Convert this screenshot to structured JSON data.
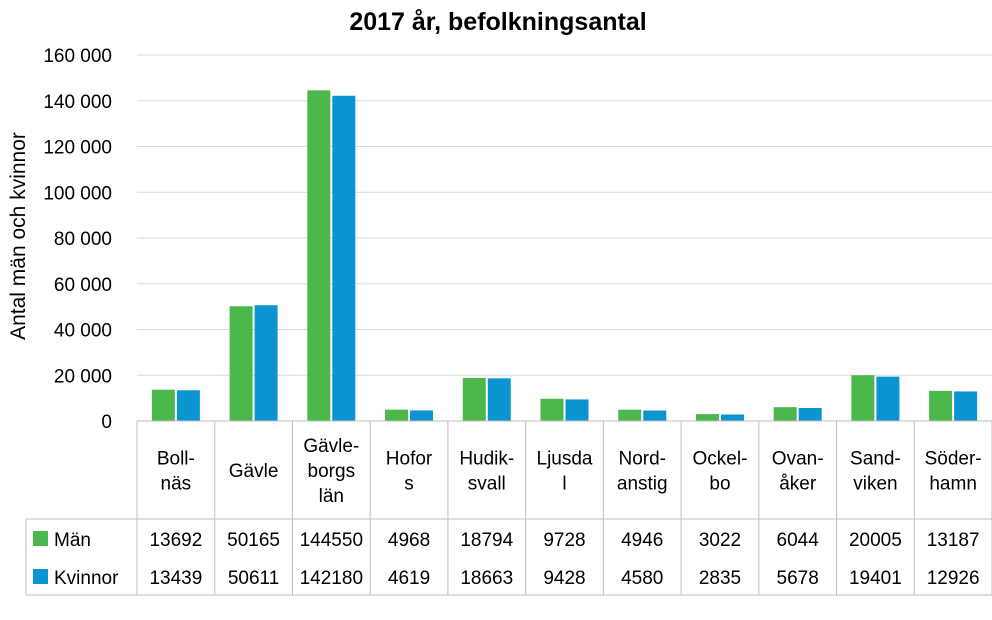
{
  "chart_data": {
    "type": "bar",
    "title": "2017 år, befolkningsantal",
    "ylabel": "Antal män och kvinnor",
    "ylim": [
      0,
      160000
    ],
    "yticks": [
      0,
      20000,
      40000,
      60000,
      80000,
      100000,
      120000,
      140000,
      160000
    ],
    "ytick_labels": [
      "0",
      "20 000",
      "40 000",
      "60 000",
      "80 000",
      "100 000",
      "120 000",
      "140 000",
      "160 000"
    ],
    "grid": true,
    "legend_placement": "data-table",
    "categories": [
      [
        "Boll-",
        "näs"
      ],
      [
        "Gävle"
      ],
      [
        "Gävle-",
        "borgs",
        "län"
      ],
      [
        "Hofor",
        "s"
      ],
      [
        "Hudik-",
        "svall"
      ],
      [
        "Ljusda",
        "l"
      ],
      [
        "Nord-",
        "anstig"
      ],
      [
        "Ockel-",
        "bo"
      ],
      [
        "Ovan-",
        "åker"
      ],
      [
        "Sand-",
        "viken"
      ],
      [
        "Söder-",
        "hamn"
      ]
    ],
    "series": [
      {
        "name": "Män",
        "color": "#4cb84c",
        "values": [
          13692,
          50165,
          144550,
          4968,
          18794,
          9728,
          4946,
          3022,
          6044,
          20005,
          13187
        ]
      },
      {
        "name": "Kvinnor",
        "color": "#0b94d0",
        "values": [
          13439,
          50611,
          142180,
          4619,
          18663,
          9428,
          4580,
          2835,
          5678,
          19401,
          12926
        ]
      }
    ]
  }
}
